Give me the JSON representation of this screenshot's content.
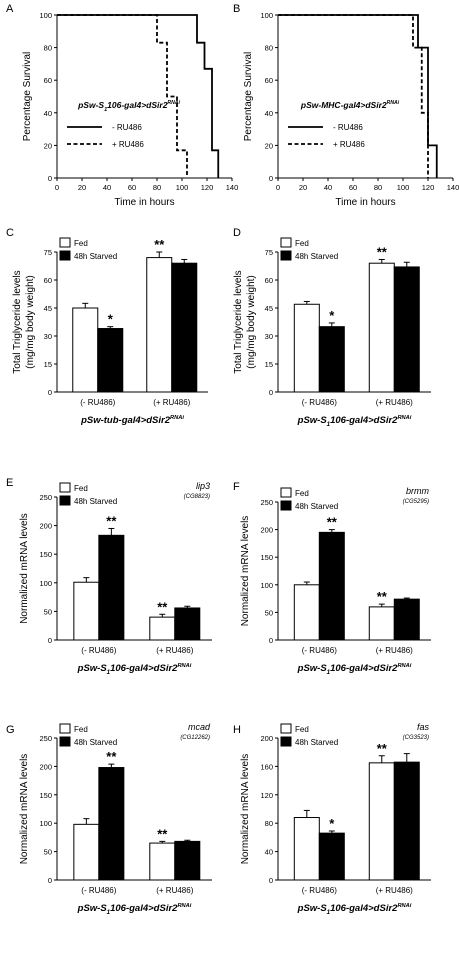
{
  "panels": [
    {
      "letter": "A",
      "type": "survival",
      "ylabel": "Percentage Survival",
      "xlabel": "Time in hours",
      "xlim": [
        0,
        140
      ],
      "ylim": [
        0,
        100
      ],
      "xticks": [
        0,
        20,
        40,
        60,
        80,
        100,
        120,
        140
      ],
      "yticks": [
        0,
        20,
        40,
        60,
        80,
        100
      ],
      "genotype": {
        "pre": "pSw-S",
        "sub": "1",
        "mid": "106-gal4>dSir2",
        "sup": "RNAi"
      },
      "series": [
        {
          "name": "- RU486",
          "dash": false,
          "x": [
            0,
            112,
            112,
            118,
            118,
            124,
            124,
            129,
            129
          ],
          "y": [
            100,
            100,
            83,
            83,
            67,
            67,
            17,
            17,
            0
          ]
        },
        {
          "name": "+ RU486",
          "dash": true,
          "x": [
            0,
            80,
            80,
            88,
            88,
            96,
            96,
            104,
            104
          ],
          "y": [
            100,
            100,
            83,
            83,
            50,
            50,
            17,
            17,
            0
          ]
        }
      ]
    },
    {
      "letter": "B",
      "type": "survival",
      "ylabel": "Percentage Survival",
      "xlabel": "Time in hours",
      "xlim": [
        0,
        140
      ],
      "ylim": [
        0,
        100
      ],
      "xticks": [
        0,
        20,
        40,
        60,
        80,
        100,
        120,
        140
      ],
      "yticks": [
        0,
        20,
        40,
        60,
        80,
        100
      ],
      "genotype": {
        "pre": "pSw-MHC-gal4>dSir2",
        "sub": "",
        "mid": "",
        "sup": "RNAi"
      },
      "series": [
        {
          "name": "- RU486",
          "dash": false,
          "x": [
            0,
            112,
            112,
            120,
            120,
            127,
            127
          ],
          "y": [
            100,
            100,
            80,
            80,
            20,
            20,
            0
          ]
        },
        {
          "name": "+ RU486",
          "dash": true,
          "x": [
            0,
            108,
            108,
            115,
            115,
            120,
            120
          ],
          "y": [
            100,
            100,
            80,
            80,
            40,
            40,
            0
          ]
        }
      ]
    },
    {
      "letter": "C",
      "type": "bar",
      "ylabel": [
        "Total Triglyceride levels",
        "(mg/mg body weight)"
      ],
      "ylim": [
        0,
        75
      ],
      "yticks": [
        0,
        15,
        30,
        45,
        60,
        75
      ],
      "categories": [
        "(- RU486)",
        "(+ RU486)"
      ],
      "legend": [
        "Fed",
        "48h Starved"
      ],
      "gene": "",
      "gene_sub": "",
      "genotype": {
        "pre": "pSw-tub-gal4>dSir2",
        "sub": "",
        "mid": "",
        "sup": "RNAi"
      },
      "fed": [
        45,
        72
      ],
      "fed_err": [
        2.5,
        3
      ],
      "starved": [
        34,
        69
      ],
      "starved_err": [
        1,
        2
      ],
      "marks": [
        {
          "cat": 0,
          "bar": 1,
          "text": "*"
        },
        {
          "cat": 1,
          "bar": 0,
          "text": "**"
        }
      ]
    },
    {
      "letter": "D",
      "type": "bar",
      "ylabel": [
        "Total Triglyceride levels",
        "(mg/mg body weight)"
      ],
      "ylim": [
        0,
        75
      ],
      "yticks": [
        0,
        15,
        30,
        45,
        60,
        75
      ],
      "categories": [
        "(- RU486)",
        "(+ RU486)"
      ],
      "legend": [
        "Fed",
        "48h Starved"
      ],
      "gene": "",
      "gene_sub": "",
      "genotype": {
        "pre": "pSw-S",
        "sub": "1",
        "mid": "106-gal4>dSir2",
        "sup": "RNAi"
      },
      "fed": [
        47,
        69
      ],
      "fed_err": [
        1.5,
        2
      ],
      "starved": [
        35,
        67
      ],
      "starved_err": [
        2,
        2.5
      ],
      "marks": [
        {
          "cat": 0,
          "bar": 1,
          "text": "*"
        },
        {
          "cat": 1,
          "bar": 0,
          "text": "**"
        }
      ]
    },
    {
      "letter": "E",
      "type": "bar",
      "ylabel": [
        "Normalized mRNA levels"
      ],
      "ylim": [
        0,
        250
      ],
      "yticks": [
        0,
        50,
        100,
        150,
        200,
        250
      ],
      "categories": [
        "(- RU486)",
        "(+ RU486)"
      ],
      "legend": [
        "Fed",
        "48h Starved"
      ],
      "gene": "lip3",
      "gene_sub": "(CG8823)",
      "genotype": {
        "pre": "pSw-S",
        "sub": "1",
        "mid": "106-gal4>dSir2",
        "sup": "RNAi"
      },
      "fed": [
        101,
        40
      ],
      "fed_err": [
        8,
        5
      ],
      "starved": [
        183,
        56
      ],
      "starved_err": [
        12,
        3
      ],
      "marks": [
        {
          "cat": 0,
          "bar": 1,
          "text": "**"
        },
        {
          "cat": 1,
          "bar": 0,
          "text": "**"
        }
      ]
    },
    {
      "letter": "F",
      "type": "bar",
      "ylabel": [
        "Normalized mRNA levels"
      ],
      "ylim": [
        0,
        250
      ],
      "yticks": [
        0,
        50,
        100,
        150,
        200,
        250
      ],
      "categories": [
        "(- RU486)",
        "(+ RU486)"
      ],
      "legend": [
        "Fed",
        "48h Starved"
      ],
      "gene": "brmm",
      "gene_sub": "(CG5295)",
      "genotype": {
        "pre": "pSw-S",
        "sub": "1",
        "mid": "106-gal4>dSir2",
        "sup": "RNAi"
      },
      "fed": [
        100,
        60
      ],
      "fed_err": [
        5,
        5
      ],
      "starved": [
        195,
        74
      ],
      "starved_err": [
        5,
        2
      ],
      "marks": [
        {
          "cat": 0,
          "bar": 1,
          "text": "**"
        },
        {
          "cat": 1,
          "bar": 0,
          "text": "**"
        }
      ]
    },
    {
      "letter": "G",
      "type": "bar",
      "ylabel": [
        "Normalized mRNA levels"
      ],
      "ylim": [
        0,
        250
      ],
      "yticks": [
        0,
        50,
        100,
        150,
        200,
        250
      ],
      "categories": [
        "(- RU486)",
        "(+ RU486)"
      ],
      "legend": [
        "Fed",
        "48h Starved"
      ],
      "gene": "mcad",
      "gene_sub": "(CG12262)",
      "genotype": {
        "pre": "pSw-S",
        "sub": "1",
        "mid": "106-gal4>dSir2",
        "sup": "RNAi"
      },
      "fed": [
        98,
        65
      ],
      "fed_err": [
        10,
        3
      ],
      "starved": [
        198,
        68
      ],
      "starved_err": [
        6,
        2
      ],
      "marks": [
        {
          "cat": 0,
          "bar": 1,
          "text": "**"
        },
        {
          "cat": 1,
          "bar": 0,
          "text": "**"
        }
      ]
    },
    {
      "letter": "H",
      "type": "bar",
      "ylabel": [
        "Normalized mRNA levels"
      ],
      "ylim": [
        0,
        200
      ],
      "yticks": [
        0,
        40,
        80,
        120,
        160,
        200
      ],
      "categories": [
        "(- RU486)",
        "(+ RU486)"
      ],
      "legend": [
        "Fed",
        "48h Starved"
      ],
      "gene": "fas",
      "gene_sub": "(CG3523)",
      "genotype": {
        "pre": "pSw-S",
        "sub": "1",
        "mid": "106-gal4>dSir2",
        "sup": "RNAi"
      },
      "fed": [
        88,
        165
      ],
      "fed_err": [
        10,
        10
      ],
      "starved": [
        66,
        166
      ],
      "starved_err": [
        3,
        12
      ],
      "marks": [
        {
          "cat": 0,
          "bar": 1,
          "text": "*"
        },
        {
          "cat": 1,
          "bar": 0,
          "text": "**"
        }
      ]
    }
  ],
  "chart_data": [
    {
      "type": "line",
      "panel": "A",
      "title": "",
      "xlabel": "Time in hours",
      "ylabel": "Percentage Survival",
      "xlim": [
        0,
        140
      ],
      "ylim": [
        0,
        100
      ],
      "series": [
        {
          "name": "- RU486",
          "x": [
            0,
            112,
            118,
            124,
            129
          ],
          "y": [
            100,
            83,
            67,
            17,
            0
          ]
        },
        {
          "name": "+ RU486",
          "x": [
            0,
            80,
            88,
            96,
            104
          ],
          "y": [
            100,
            83,
            50,
            17,
            0
          ]
        }
      ]
    },
    {
      "type": "line",
      "panel": "B",
      "title": "",
      "xlabel": "Time in hours",
      "ylabel": "Percentage Survival",
      "xlim": [
        0,
        140
      ],
      "ylim": [
        0,
        100
      ],
      "series": [
        {
          "name": "- RU486",
          "x": [
            0,
            112,
            120,
            127
          ],
          "y": [
            100,
            80,
            20,
            0
          ]
        },
        {
          "name": "+ RU486",
          "x": [
            0,
            108,
            115,
            120
          ],
          "y": [
            100,
            80,
            40,
            0
          ]
        }
      ]
    },
    {
      "type": "bar",
      "panel": "C",
      "categories": [
        "(- RU486)",
        "(+ RU486)"
      ],
      "ylabel": "Total Triglyceride levels (mg/mg body weight)",
      "ylim": [
        0,
        75
      ],
      "series": [
        {
          "name": "Fed",
          "values": [
            45,
            72
          ]
        },
        {
          "name": "48h Starved",
          "values": [
            34,
            69
          ]
        }
      ]
    },
    {
      "type": "bar",
      "panel": "D",
      "categories": [
        "(- RU486)",
        "(+ RU486)"
      ],
      "ylabel": "Total Triglyceride levels (mg/mg body weight)",
      "ylim": [
        0,
        75
      ],
      "series": [
        {
          "name": "Fed",
          "values": [
            47,
            69
          ]
        },
        {
          "name": "48h Starved",
          "values": [
            35,
            67
          ]
        }
      ]
    },
    {
      "type": "bar",
      "panel": "E",
      "categories": [
        "(- RU486)",
        "(+ RU486)"
      ],
      "ylabel": "Normalized mRNA levels",
      "ylim": [
        0,
        250
      ],
      "series": [
        {
          "name": "Fed",
          "values": [
            101,
            40
          ]
        },
        {
          "name": "48h Starved",
          "values": [
            183,
            56
          ]
        }
      ]
    },
    {
      "type": "bar",
      "panel": "F",
      "categories": [
        "(- RU486)",
        "(+ RU486)"
      ],
      "ylabel": "Normalized mRNA levels",
      "ylim": [
        0,
        250
      ],
      "series": [
        {
          "name": "Fed",
          "values": [
            100,
            60
          ]
        },
        {
          "name": "48h Starved",
          "values": [
            195,
            74
          ]
        }
      ]
    },
    {
      "type": "bar",
      "panel": "G",
      "categories": [
        "(- RU486)",
        "(+ RU486)"
      ],
      "ylabel": "Normalized mRNA levels",
      "ylim": [
        0,
        250
      ],
      "series": [
        {
          "name": "Fed",
          "values": [
            98,
            65
          ]
        },
        {
          "name": "48h Starved",
          "values": [
            198,
            68
          ]
        }
      ]
    },
    {
      "type": "bar",
      "panel": "H",
      "categories": [
        "(- RU486)",
        "(+ RU486)"
      ],
      "ylabel": "Normalized mRNA levels",
      "ylim": [
        0,
        200
      ],
      "series": [
        {
          "name": "Fed",
          "values": [
            88,
            165
          ]
        },
        {
          "name": "48h Starved",
          "values": [
            66,
            166
          ]
        }
      ]
    }
  ]
}
